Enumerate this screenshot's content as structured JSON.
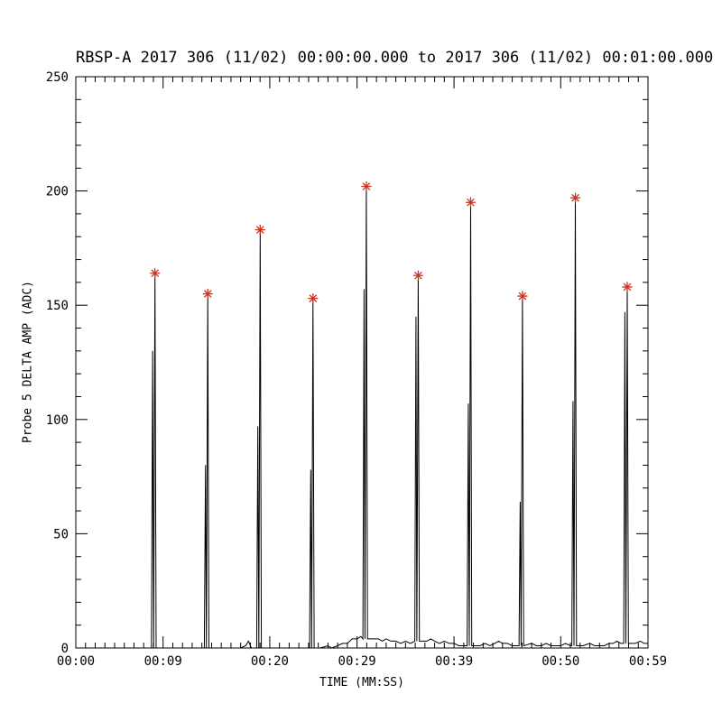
{
  "page": {
    "background": "#ffffff"
  },
  "chart_data": {
    "type": "line",
    "title": "RBSP-A 2017 306 (11/02) 00:00:00.000 to 2017 306 (11/02) 00:01:00.000",
    "xlabel": "TIME (MM:SS)",
    "ylabel": "Probe 5 DELTA AMP (ADC)",
    "xlim_seconds": [
      0,
      59
    ],
    "ylim": [
      0,
      250
    ],
    "grid": false,
    "legend": "none",
    "line_color": "#000000",
    "marker": "asterisk",
    "marker_color": "#cc3322",
    "x_ticks": [
      {
        "s": 0,
        "label": "00:00"
      },
      {
        "s": 9,
        "label": "00:09"
      },
      {
        "s": 20,
        "label": "00:20"
      },
      {
        "s": 29,
        "label": "00:29"
      },
      {
        "s": 39,
        "label": "00:39"
      },
      {
        "s": 50,
        "label": "00:50"
      },
      {
        "s": 59,
        "label": "00:59"
      }
    ],
    "x_minor_step_seconds": 1,
    "y_ticks": [
      0,
      50,
      100,
      150,
      200,
      250
    ],
    "y_minor_step": 10,
    "peaks": [
      {
        "t": 8.3,
        "v": 164,
        "m": 130,
        "b": 0
      },
      {
        "t": 13.75,
        "v": 155,
        "m": 80,
        "b": 0
      },
      {
        "t": 19.15,
        "v": 183,
        "m": 97,
        "b": 0
      },
      {
        "t": 24.6,
        "v": 153,
        "m": 78,
        "b": 0
      },
      {
        "t": 30.1,
        "v": 202,
        "m": 157,
        "b": 4
      },
      {
        "t": 35.45,
        "v": 163,
        "m": 145,
        "b": 3
      },
      {
        "t": 40.85,
        "v": 195,
        "m": 107,
        "b": 1
      },
      {
        "t": 46.2,
        "v": 154,
        "m": 64,
        "b": 1
      },
      {
        "t": 51.65,
        "v": 197,
        "m": 108,
        "b": 1
      },
      {
        "t": 57.0,
        "v": 158,
        "m": 147,
        "b": 2
      }
    ],
    "baseline": [
      [
        0,
        0
      ],
      [
        1,
        0
      ],
      [
        2,
        0
      ],
      [
        3,
        0
      ],
      [
        4,
        0
      ],
      [
        5,
        0
      ],
      [
        6,
        0
      ],
      [
        7,
        0
      ],
      [
        7.6,
        0
      ],
      [
        9,
        0
      ],
      [
        10,
        0
      ],
      [
        11,
        0
      ],
      [
        12,
        0
      ],
      [
        13,
        0
      ],
      [
        14.2,
        0
      ],
      [
        15,
        0
      ],
      [
        16,
        0
      ],
      [
        17,
        0
      ],
      [
        17.5,
        1
      ],
      [
        17.8,
        3
      ],
      [
        18.1,
        0
      ],
      [
        18.6,
        2
      ],
      [
        18.9,
        3
      ],
      [
        20,
        0
      ],
      [
        21,
        0
      ],
      [
        22,
        0
      ],
      [
        23,
        0
      ],
      [
        24,
        0
      ],
      [
        25.2,
        0
      ],
      [
        26,
        1
      ],
      [
        26.4,
        0
      ],
      [
        27,
        1
      ],
      [
        27.5,
        2
      ],
      [
        28,
        2
      ],
      [
        28.5,
        4
      ],
      [
        29,
        4
      ],
      [
        29.4,
        5
      ],
      [
        30.8,
        4
      ],
      [
        31.2,
        4
      ],
      [
        31.6,
        3
      ],
      [
        32,
        4
      ],
      [
        32.5,
        3
      ],
      [
        33,
        3
      ],
      [
        33.5,
        2
      ],
      [
        34,
        3
      ],
      [
        34.5,
        2
      ],
      [
        36.2,
        3
      ],
      [
        36.6,
        4
      ],
      [
        37,
        3
      ],
      [
        37.5,
        2
      ],
      [
        38,
        3
      ],
      [
        38.5,
        2
      ],
      [
        39,
        2
      ],
      [
        39.5,
        1
      ],
      [
        40,
        1
      ],
      [
        41.7,
        1
      ],
      [
        42.2,
        2
      ],
      [
        42.7,
        1
      ],
      [
        43.2,
        2
      ],
      [
        43.6,
        3
      ],
      [
        44,
        2
      ],
      [
        44.5,
        2
      ],
      [
        45,
        1
      ],
      [
        45.5,
        1
      ],
      [
        47,
        2
      ],
      [
        47.5,
        1
      ],
      [
        48,
        1
      ],
      [
        48.5,
        2
      ],
      [
        49,
        1
      ],
      [
        50,
        1
      ],
      [
        50.5,
        2
      ],
      [
        51,
        1
      ],
      [
        52.3,
        1
      ],
      [
        53,
        2
      ],
      [
        53.5,
        1
      ],
      [
        54,
        1
      ],
      [
        54.5,
        1
      ],
      [
        55,
        2
      ],
      [
        55.4,
        2
      ],
      [
        55.8,
        3
      ],
      [
        56.2,
        2
      ],
      [
        57.7,
        2
      ],
      [
        58.2,
        3
      ],
      [
        58.6,
        2
      ],
      [
        59,
        2
      ]
    ]
  }
}
